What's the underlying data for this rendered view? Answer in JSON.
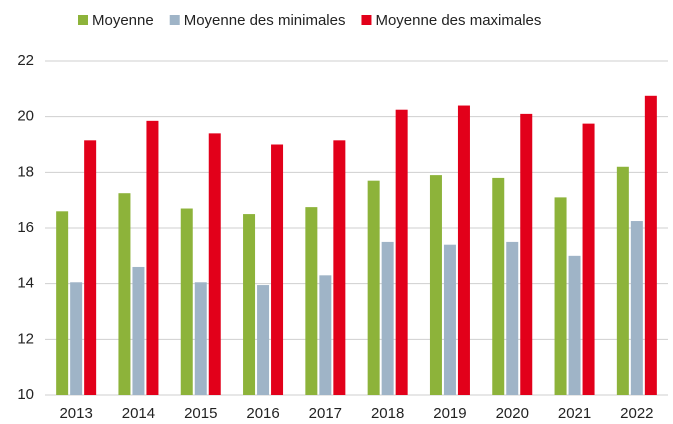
{
  "chart_data": {
    "type": "bar",
    "categories": [
      "2013",
      "2014",
      "2015",
      "2016",
      "2017",
      "2018",
      "2019",
      "2020",
      "2021",
      "2022"
    ],
    "series": [
      {
        "name": "Moyenne",
        "color": "#8db33a",
        "values": [
          16.6,
          17.25,
          16.7,
          16.5,
          16.75,
          17.7,
          17.9,
          17.8,
          17.1,
          18.2
        ]
      },
      {
        "name": "Moyenne des minimales",
        "color": "#9fb4c7",
        "values": [
          14.05,
          14.6,
          14.05,
          13.95,
          14.3,
          15.5,
          15.4,
          15.5,
          15.0,
          16.25
        ]
      },
      {
        "name": "Moyenne des maximales",
        "color": "#e2001a",
        "values": [
          19.15,
          19.85,
          19.4,
          19.0,
          19.15,
          20.25,
          20.4,
          20.1,
          19.75,
          20.75
        ]
      }
    ],
    "ylim": [
      10,
      22
    ],
    "yticks": [
      10,
      12,
      14,
      16,
      18,
      20,
      22
    ],
    "grid": true,
    "legend": "top"
  }
}
